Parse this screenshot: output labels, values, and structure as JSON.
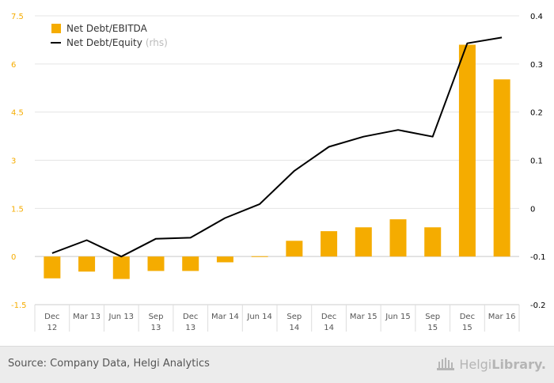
{
  "chart_data": {
    "type": "bar+line",
    "categories": [
      [
        "Dec",
        "12"
      ],
      [
        "Mar 13"
      ],
      [
        "Jun 13"
      ],
      [
        "Sep",
        "13"
      ],
      [
        "Dec",
        "13"
      ],
      [
        "Mar 14"
      ],
      [
        "Jun 14"
      ],
      [
        "Sep",
        "14"
      ],
      [
        "Dec",
        "14"
      ],
      [
        "Mar 15"
      ],
      [
        "Jun 15"
      ],
      [
        "Sep",
        "15"
      ],
      [
        "Dec",
        "15"
      ],
      [
        "Mar 16"
      ]
    ],
    "series": [
      {
        "name": "Net Debt/EBITDA",
        "type": "bar",
        "axis": "left",
        "color": "#f5ac00",
        "values": [
          -0.68,
          -0.47,
          -0.7,
          -0.45,
          -0.45,
          -0.18,
          0.01,
          0.49,
          0.79,
          0.91,
          1.16,
          0.91,
          6.6,
          5.52
        ]
      },
      {
        "name": "Net Debt/Equity",
        "name_suffix": "(rhs)",
        "type": "line",
        "axis": "right",
        "color": "#000000",
        "values": [
          -0.093,
          -0.066,
          -0.1,
          -0.063,
          -0.061,
          -0.02,
          0.009,
          0.078,
          0.128,
          0.149,
          0.163,
          0.149,
          0.343,
          0.355
        ]
      }
    ],
    "y_left": {
      "min": -1.5,
      "max": 7.5,
      "ticks": [
        "-1.5",
        "0",
        "1.5",
        "3",
        "4.5",
        "6",
        "7.5"
      ],
      "color": "#f5ac00"
    },
    "y_right": {
      "min": -0.2,
      "max": 0.4,
      "ticks": [
        "-0.2",
        "-0.1",
        "0",
        "0.1",
        "0.2",
        "0.3",
        "0.4"
      ],
      "color": "#000000"
    },
    "grid": true,
    "legend_position": "top-left"
  },
  "footer": {
    "source": "Source: Company Data, Helgi Analytics",
    "brand_a": "Helgi",
    "brand_b": "Library."
  }
}
